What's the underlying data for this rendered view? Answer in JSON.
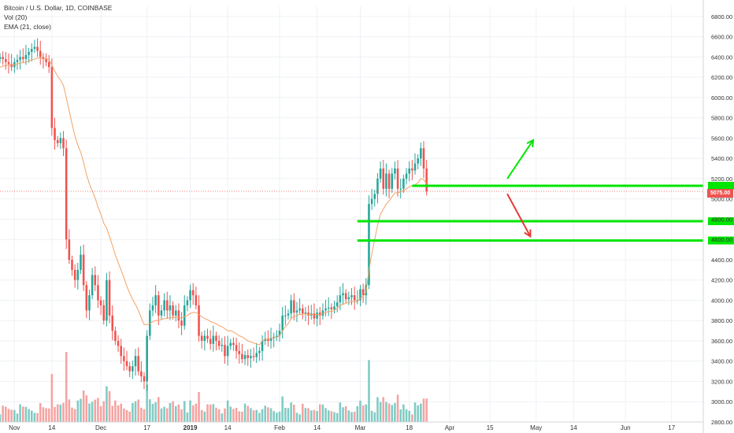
{
  "legend": {
    "title": "Bitcoin / U.S. Dollar, 1D, COINBASE",
    "volume": "Vol (20)",
    "ema": "EMA (21, close)"
  },
  "last_price_label": "5075.00",
  "colors": {
    "up": "#26a69a",
    "down": "#ef5350",
    "up_volume": "#80cbc4",
    "down_volume": "#f5a3a1",
    "ema": "#f4a261",
    "annotation": "#00e600",
    "arrow_down": "#e53935",
    "grid": "#eef1f5",
    "last_price_line": "#ef5350"
  },
  "chart_data": {
    "type": "candlestick",
    "symbol": "BTCUSD",
    "interval": "1D",
    "exchange": "COINBASE",
    "ylim": [
      2800,
      6900
    ],
    "y_ticks": [
      2800,
      3000,
      3200,
      3400,
      3600,
      3800,
      4000,
      4200,
      4400,
      4600,
      4800,
      5000,
      5200,
      5400,
      5600,
      5800,
      6000,
      6200,
      6400,
      6600,
      6800
    ],
    "x_ticks": [
      {
        "label": "Nov",
        "date": "2018-11-01"
      },
      {
        "label": "14",
        "date": "2018-11-14"
      },
      {
        "label": "Dec",
        "date": "2018-12-01"
      },
      {
        "label": "17",
        "date": "2018-12-17"
      },
      {
        "label": "2019",
        "date": "2019-01-01"
      },
      {
        "label": "14",
        "date": "2019-01-14"
      },
      {
        "label": "Feb",
        "date": "2019-02-01"
      },
      {
        "label": "14",
        "date": "2019-02-14"
      },
      {
        "label": "Mar",
        "date": "2019-03-01"
      },
      {
        "label": "18",
        "date": "2019-03-18"
      },
      {
        "label": "Apr",
        "date": "2019-04-01"
      },
      {
        "label": "15",
        "date": "2019-04-15"
      },
      {
        "label": "May",
        "date": "2019-05-01"
      },
      {
        "label": "14",
        "date": "2019-05-14"
      },
      {
        "label": "Jun",
        "date": "2019-06-01"
      },
      {
        "label": "17",
        "date": "2019-06-17"
      }
    ],
    "x_range": [
      "2018-10-27",
      "2019-06-28"
    ],
    "first_candle_date": "2018-10-27",
    "close": [
      6400,
      6380,
      6350,
      6330,
      6300,
      6350,
      6370,
      6400,
      6380,
      6420,
      6450,
      6480,
      6500,
      6460,
      6400,
      6380,
      6350,
      6300,
      5700,
      5580,
      5550,
      5600,
      5500,
      4600,
      4400,
      4300,
      4200,
      4300,
      4450,
      4150,
      3900,
      4050,
      4250,
      4150,
      4000,
      3950,
      3800,
      4200,
      3850,
      3700,
      3600,
      3550,
      3450,
      3400,
      3350,
      3300,
      3350,
      3450,
      3300,
      3250,
      3200,
      3650,
      3900,
      3950,
      4050,
      3850,
      3900,
      4000,
      3900,
      3950,
      3850,
      3900,
      3800,
      3750,
      3950,
      4000,
      4100,
      4050,
      3950,
      3650,
      3600,
      3650,
      3620,
      3570,
      3650,
      3600,
      3550,
      3560,
      3450,
      3550,
      3580,
      3560,
      3500,
      3470,
      3420,
      3460,
      3430,
      3450,
      3440,
      3480,
      3500,
      3600,
      3620,
      3600,
      3630,
      3640,
      3650,
      3700,
      3850,
      3850,
      3870,
      4000,
      3880,
      3900,
      3920,
      3870,
      3880,
      3850,
      3870,
      3820,
      3880,
      3850,
      3900,
      3920,
      3930,
      3910,
      3940,
      3980,
      4050,
      4070,
      4010,
      4030,
      4050,
      4000,
      4000,
      4110,
      4050,
      4150,
      4950,
      5000,
      5050,
      5200,
      5300,
      5100,
      5250,
      5100,
      5250,
      5300,
      5100,
      5100,
      5200,
      5250,
      5300,
      5280,
      5350,
      5400,
      5500,
      5300,
      5075
    ],
    "ema21_approx": [
      6300,
      6310,
      6315,
      6320,
      6320,
      6325,
      6330,
      6340,
      6345,
      6350,
      6360,
      6370,
      6380,
      6390,
      6390,
      6390,
      6385,
      6375,
      6320,
      6260,
      6210,
      6170,
      6120,
      6000,
      5870,
      5740,
      5620,
      5530,
      5460,
      5360,
      5240,
      5150,
      5080,
      5010,
      4920,
      4850,
      4760,
      4710,
      4630,
      4540,
      4450,
      4370,
      4300,
      4220,
      4140,
      4070,
      4010,
      3960,
      3900,
      3830,
      3760,
      3760,
      3770,
      3790,
      3800,
      3805,
      3810,
      3820,
      3820,
      3830,
      3830,
      3835,
      3830,
      3825,
      3840,
      3850,
      3870,
      3880,
      3880,
      3860,
      3840,
      3820,
      3810,
      3790,
      3780,
      3770,
      3750,
      3740,
      3720,
      3700,
      3700,
      3690,
      3670,
      3650,
      3640,
      3620,
      3600,
      3590,
      3580,
      3570,
      3560,
      3600,
      3615,
      3618,
      3625,
      3630,
      3635,
      3650,
      3700,
      3740,
      3770,
      3820,
      3840,
      3850,
      3860,
      3860,
      3870,
      3860,
      3860,
      3855,
      3860,
      3860,
      3870,
      3880,
      3890,
      3890,
      3900,
      3920,
      3950,
      3960,
      3970,
      3980,
      3990,
      3985,
      3990,
      4020,
      4040,
      4080,
      4300,
      4460,
      4600,
      4740,
      4850,
      4900,
      4950,
      4980,
      5020,
      5060,
      5060,
      5070,
      5080,
      5100,
      5120,
      5130,
      5140,
      5160,
      5200,
      5190,
      5150
    ],
    "volume_note": "volume bars shown in lower pane (Vol 20)",
    "annotations": {
      "horizontal_levels": [
        5130,
        4780,
        4590
      ],
      "arrow_up": {
        "from": {
          "date": "2019-04-21",
          "value": 5200
        },
        "to": {
          "date": "2019-04-30",
          "value": 5580
        }
      },
      "arrow_down": {
        "from": {
          "date": "2019-04-21",
          "value": 5050
        },
        "to": {
          "date": "2019-04-29",
          "value": 4630
        }
      }
    }
  }
}
